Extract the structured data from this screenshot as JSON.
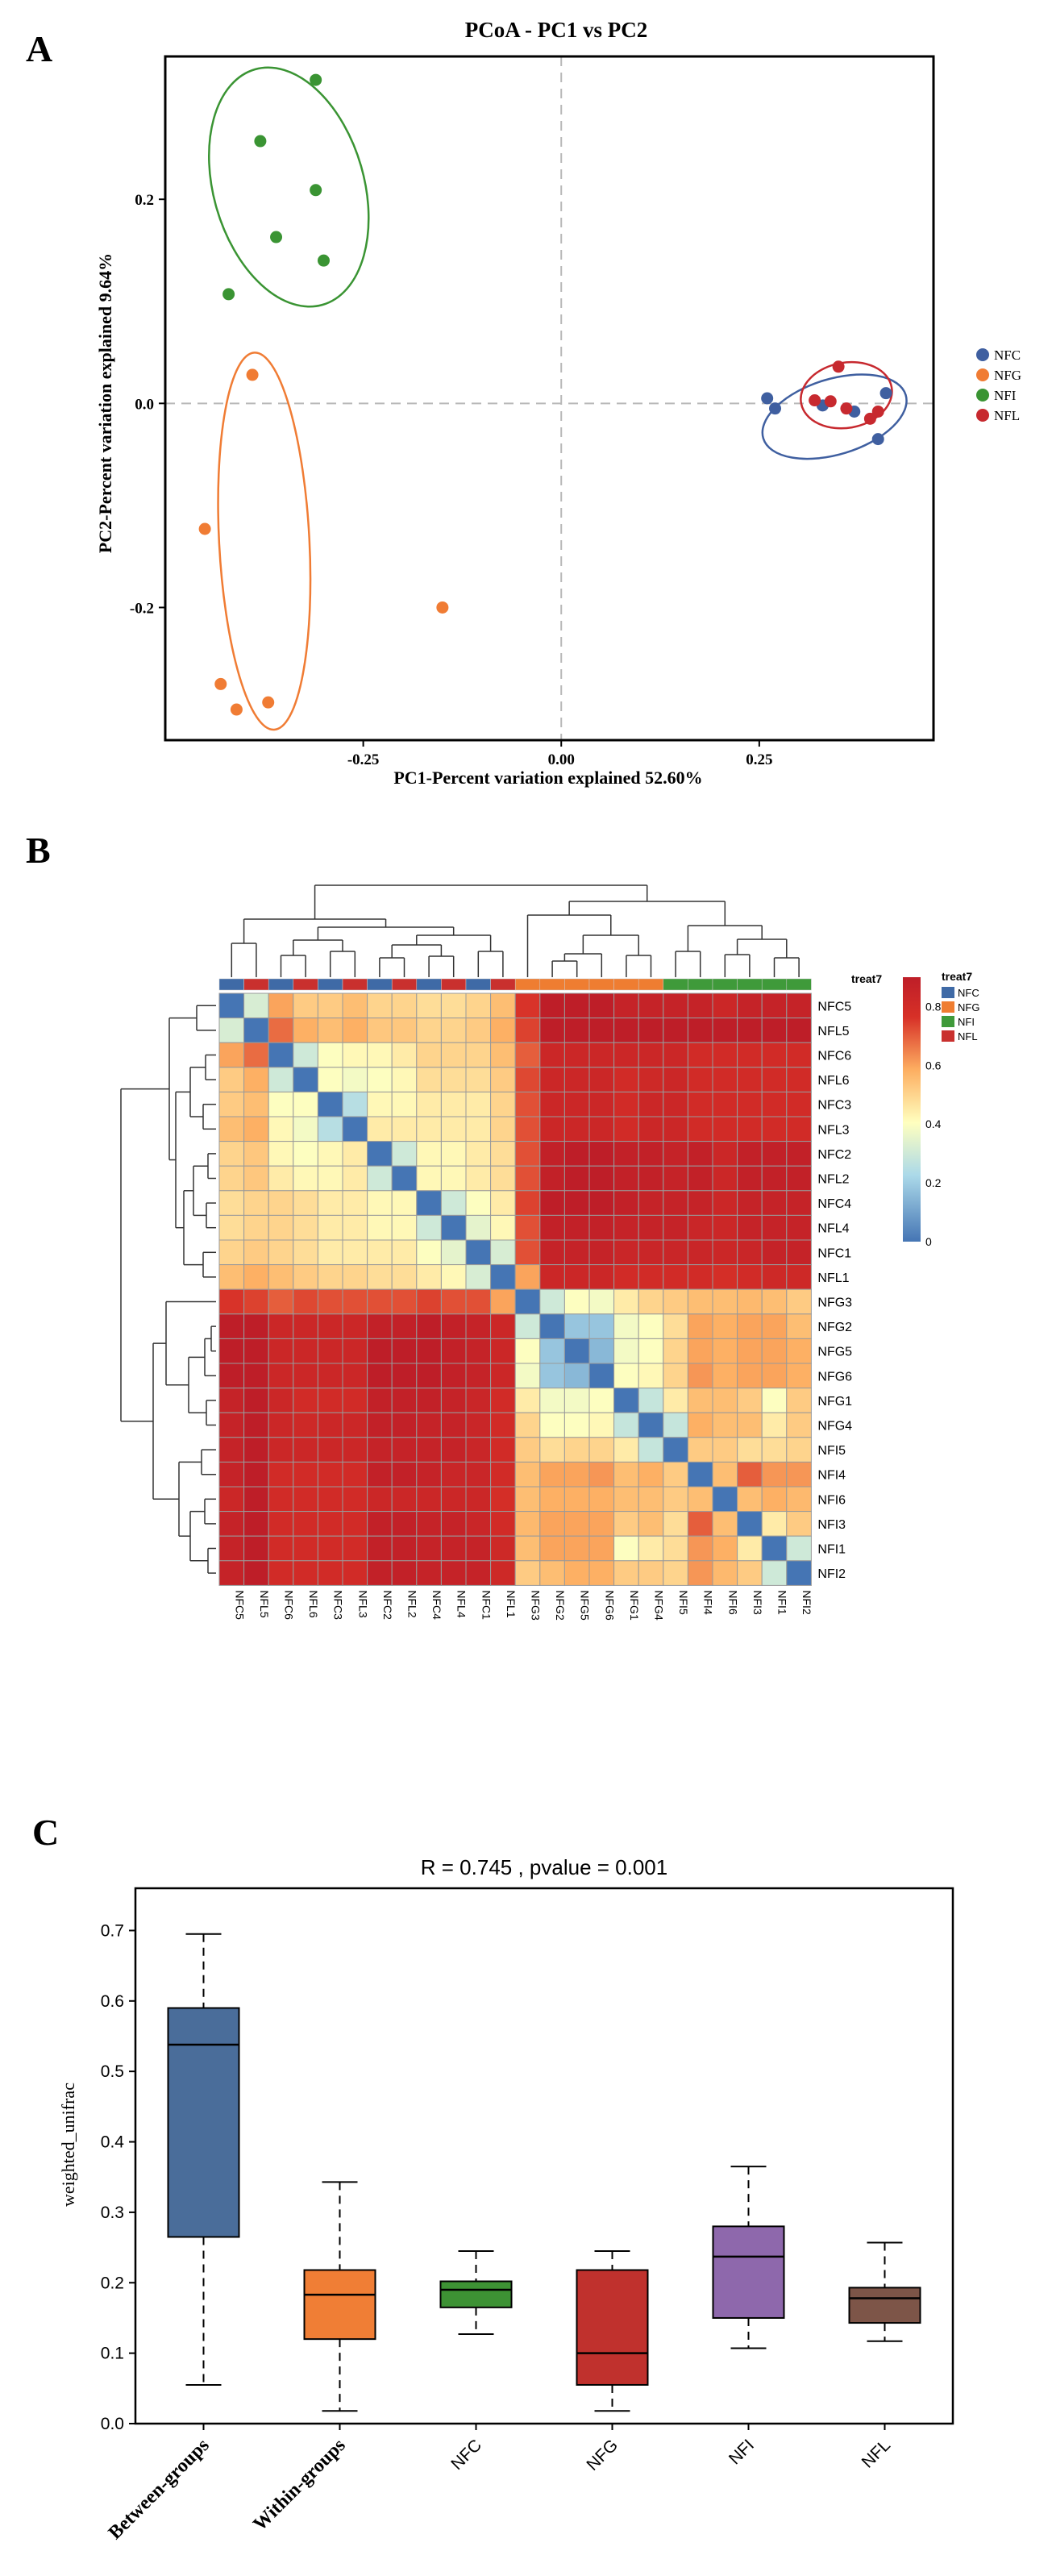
{
  "panels": {
    "a": {
      "label": "A",
      "chart_data": {
        "type": "scatter",
        "title": "PCoA - PC1 vs PC2",
        "xlabel": "PC1-Percent variation explained 52.60%",
        "ylabel": "PC2-Percent variation explained 9.64%",
        "xlim": [
          -0.5,
          0.47
        ],
        "ylim": [
          -0.33,
          0.34
        ],
        "xticks": [
          -0.25,
          0.0,
          0.25
        ],
        "xtick_labels": [
          "-0.25",
          "0.00",
          "0.25"
        ],
        "yticks": [
          -0.2,
          0.0,
          0.2
        ],
        "ytick_labels": [
          "-0.2",
          "0.0",
          "0.2"
        ],
        "legend_position": "right",
        "series": [
          {
            "name": "NFC",
            "color": "#3f5fa0",
            "points": [
              [
                0.26,
                0.005
              ],
              [
                0.27,
                -0.005
              ],
              [
                0.33,
                -0.002
              ],
              [
                0.41,
                0.01
              ],
              [
                0.4,
                -0.035
              ],
              [
                0.37,
                -0.008
              ]
            ],
            "ellipse": {
              "cx": 0.345,
              "cy": -0.013,
              "rx": 0.094,
              "ry": 0.037,
              "angle": -17
            }
          },
          {
            "name": "NFG",
            "color": "#f07c34",
            "points": [
              [
                -0.39,
                0.028
              ],
              [
                -0.45,
                -0.123
              ],
              [
                -0.15,
                -0.2
              ],
              [
                -0.43,
                -0.275
              ],
              [
                -0.37,
                -0.293
              ],
              [
                -0.41,
                -0.3
              ]
            ],
            "ellipse": {
              "cx": -0.375,
              "cy": -0.135,
              "rx": 0.057,
              "ry": 0.185,
              "angle": -3
            }
          },
          {
            "name": "NFI",
            "color": "#3a9433",
            "points": [
              [
                -0.31,
                0.317
              ],
              [
                -0.38,
                0.257
              ],
              [
                -0.31,
                0.209
              ],
              [
                -0.36,
                0.163
              ],
              [
                -0.3,
                0.14
              ],
              [
                -0.42,
                0.107
              ]
            ],
            "ellipse": {
              "cx": -0.344,
              "cy": 0.212,
              "rx": 0.095,
              "ry": 0.12,
              "angle": -16
            }
          },
          {
            "name": "NFL",
            "color": "#c7292f",
            "points": [
              [
                0.35,
                0.036
              ],
              [
                0.34,
                0.002
              ],
              [
                0.32,
                0.003
              ],
              [
                0.36,
                -0.005
              ],
              [
                0.4,
                -0.008
              ],
              [
                0.39,
                -0.015
              ]
            ],
            "ellipse": {
              "cx": 0.36,
              "cy": 0.008,
              "rx": 0.058,
              "ry": 0.032,
              "angle": -10
            }
          }
        ]
      }
    },
    "b": {
      "label": "B",
      "chart_data": {
        "type": "heatmap",
        "rows": [
          "NFC5",
          "NFL5",
          "NFC6",
          "NFL6",
          "NFC3",
          "NFL3",
          "NFC2",
          "NFL2",
          "NFC4",
          "NFL4",
          "NFC1",
          "NFL1",
          "NFG3",
          "NFG2",
          "NFG5",
          "NFG6",
          "NFG1",
          "NFG4",
          "NFI5",
          "NFI4",
          "NFI6",
          "NFI3",
          "NFI1",
          "NFI2"
        ],
        "columns": [
          "NFC5",
          "NFL5",
          "NFC6",
          "NFL6",
          "NFC3",
          "NFL3",
          "NFC2",
          "NFL2",
          "NFC4",
          "NFL4",
          "NFC1",
          "NFL1",
          "NFG3",
          "NFG2",
          "NFG5",
          "NFG6",
          "NFG1",
          "NFG4",
          "NFI5",
          "NFI4",
          "NFI6",
          "NFI3",
          "NFI1",
          "NFI2"
        ],
        "column_groups": [
          "NFC",
          "NFL",
          "NFC",
          "NFL",
          "NFC",
          "NFL",
          "NFC",
          "NFL",
          "NFC",
          "NFL",
          "NFC",
          "NFL",
          "NFG",
          "NFG",
          "NFG",
          "NFG",
          "NFG",
          "NFG",
          "NFI",
          "NFI",
          "NFI",
          "NFI",
          "NFI",
          "NFI"
        ],
        "annotation_title": "treat7",
        "legend_title": "treat7",
        "group_legend": [
          {
            "name": "NFC",
            "color": "#3f6aa6"
          },
          {
            "name": "NFG",
            "color": "#ef7d31"
          },
          {
            "name": "NFI",
            "color": "#3f9a3a"
          },
          {
            "name": "NFL",
            "color": "#c9302e"
          }
        ],
        "colorbar_ticks": [
          0,
          0.2,
          0.4,
          0.6,
          0.8
        ],
        "colorbar_labels": [
          "0",
          "0.2",
          "0.4",
          "0.6",
          "0.8"
        ],
        "value_range": [
          0,
          0.9
        ],
        "matrix": [
          [
            0.0,
            0.32,
            0.6,
            0.52,
            0.52,
            0.55,
            0.5,
            0.5,
            0.48,
            0.48,
            0.5,
            0.55,
            0.76,
            0.91,
            0.91,
            0.91,
            0.86,
            0.86,
            0.86,
            0.86,
            0.83,
            0.86,
            0.86,
            0.86
          ],
          [
            0.32,
            0.0,
            0.68,
            0.58,
            0.55,
            0.58,
            0.53,
            0.53,
            0.5,
            0.5,
            0.52,
            0.58,
            0.74,
            0.93,
            0.93,
            0.93,
            0.93,
            0.91,
            0.9,
            0.9,
            0.9,
            0.9,
            0.93,
            0.93
          ],
          [
            0.6,
            0.68,
            0.0,
            0.3,
            0.4,
            0.42,
            0.42,
            0.45,
            0.5,
            0.5,
            0.5,
            0.55,
            0.7,
            0.83,
            0.83,
            0.83,
            0.83,
            0.83,
            0.83,
            0.8,
            0.8,
            0.8,
            0.8,
            0.8
          ],
          [
            0.52,
            0.58,
            0.3,
            0.0,
            0.4,
            0.38,
            0.4,
            0.42,
            0.48,
            0.48,
            0.48,
            0.52,
            0.73,
            0.83,
            0.83,
            0.83,
            0.8,
            0.82,
            0.83,
            0.8,
            0.8,
            0.8,
            0.8,
            0.8
          ],
          [
            0.52,
            0.55,
            0.4,
            0.4,
            0.0,
            0.25,
            0.42,
            0.42,
            0.45,
            0.45,
            0.45,
            0.5,
            0.72,
            0.83,
            0.83,
            0.83,
            0.8,
            0.83,
            0.83,
            0.8,
            0.8,
            0.8,
            0.8,
            0.8
          ],
          [
            0.55,
            0.58,
            0.42,
            0.38,
            0.25,
            0.0,
            0.45,
            0.45,
            0.45,
            0.45,
            0.45,
            0.5,
            0.72,
            0.83,
            0.83,
            0.83,
            0.8,
            0.83,
            0.83,
            0.8,
            0.8,
            0.8,
            0.8,
            0.8
          ],
          [
            0.5,
            0.53,
            0.42,
            0.4,
            0.42,
            0.45,
            0.0,
            0.3,
            0.42,
            0.42,
            0.45,
            0.48,
            0.72,
            0.88,
            0.9,
            0.9,
            0.88,
            0.88,
            0.86,
            0.88,
            0.83,
            0.88,
            0.88,
            0.88
          ],
          [
            0.5,
            0.53,
            0.45,
            0.42,
            0.42,
            0.45,
            0.3,
            0.0,
            0.42,
            0.42,
            0.45,
            0.48,
            0.72,
            0.88,
            0.9,
            0.9,
            0.88,
            0.88,
            0.86,
            0.88,
            0.83,
            0.88,
            0.88,
            0.88
          ],
          [
            0.48,
            0.5,
            0.5,
            0.48,
            0.45,
            0.45,
            0.42,
            0.42,
            0.0,
            0.3,
            0.4,
            0.45,
            0.74,
            0.9,
            0.9,
            0.9,
            0.88,
            0.86,
            0.86,
            0.86,
            0.83,
            0.86,
            0.86,
            0.86
          ],
          [
            0.48,
            0.5,
            0.5,
            0.48,
            0.45,
            0.45,
            0.42,
            0.42,
            0.3,
            0.0,
            0.35,
            0.42,
            0.72,
            0.88,
            0.88,
            0.88,
            0.86,
            0.86,
            0.86,
            0.84,
            0.83,
            0.86,
            0.86,
            0.86
          ],
          [
            0.5,
            0.52,
            0.5,
            0.48,
            0.45,
            0.45,
            0.45,
            0.45,
            0.4,
            0.35,
            0.0,
            0.32,
            0.72,
            0.86,
            0.86,
            0.86,
            0.84,
            0.84,
            0.84,
            0.84,
            0.83,
            0.84,
            0.86,
            0.86
          ],
          [
            0.55,
            0.58,
            0.55,
            0.52,
            0.5,
            0.5,
            0.48,
            0.48,
            0.45,
            0.42,
            0.32,
            0.0,
            0.6,
            0.83,
            0.83,
            0.83,
            0.8,
            0.8,
            0.8,
            0.8,
            0.78,
            0.8,
            0.82,
            0.82
          ],
          [
            0.76,
            0.74,
            0.7,
            0.73,
            0.72,
            0.72,
            0.72,
            0.72,
            0.74,
            0.72,
            0.72,
            0.6,
            0.0,
            0.3,
            0.4,
            0.38,
            0.45,
            0.5,
            0.52,
            0.55,
            0.55,
            0.56,
            0.55,
            0.52
          ],
          [
            0.91,
            0.93,
            0.83,
            0.83,
            0.83,
            0.83,
            0.88,
            0.88,
            0.9,
            0.88,
            0.86,
            0.83,
            0.3,
            0.0,
            0.18,
            0.18,
            0.38,
            0.4,
            0.48,
            0.6,
            0.58,
            0.6,
            0.6,
            0.55
          ],
          [
            0.91,
            0.93,
            0.83,
            0.83,
            0.83,
            0.83,
            0.9,
            0.9,
            0.9,
            0.88,
            0.86,
            0.83,
            0.4,
            0.18,
            0.0,
            0.15,
            0.38,
            0.4,
            0.5,
            0.6,
            0.58,
            0.6,
            0.6,
            0.58
          ],
          [
            0.91,
            0.93,
            0.83,
            0.83,
            0.83,
            0.83,
            0.9,
            0.9,
            0.9,
            0.88,
            0.86,
            0.83,
            0.38,
            0.18,
            0.15,
            0.0,
            0.4,
            0.42,
            0.5,
            0.62,
            0.58,
            0.6,
            0.6,
            0.58
          ],
          [
            0.86,
            0.93,
            0.83,
            0.8,
            0.8,
            0.8,
            0.88,
            0.88,
            0.88,
            0.86,
            0.84,
            0.8,
            0.45,
            0.38,
            0.38,
            0.4,
            0.0,
            0.28,
            0.45,
            0.55,
            0.55,
            0.52,
            0.4,
            0.52
          ],
          [
            0.86,
            0.91,
            0.83,
            0.82,
            0.83,
            0.83,
            0.88,
            0.88,
            0.86,
            0.86,
            0.84,
            0.8,
            0.5,
            0.4,
            0.4,
            0.42,
            0.28,
            0.0,
            0.28,
            0.58,
            0.55,
            0.55,
            0.45,
            0.52
          ],
          [
            0.86,
            0.9,
            0.83,
            0.83,
            0.83,
            0.83,
            0.86,
            0.86,
            0.86,
            0.86,
            0.84,
            0.8,
            0.52,
            0.48,
            0.5,
            0.5,
            0.45,
            0.28,
            0.0,
            0.52,
            0.52,
            0.48,
            0.48,
            0.5
          ],
          [
            0.86,
            0.9,
            0.8,
            0.8,
            0.8,
            0.8,
            0.88,
            0.88,
            0.86,
            0.84,
            0.84,
            0.8,
            0.55,
            0.6,
            0.6,
            0.62,
            0.55,
            0.58,
            0.52,
            0.0,
            0.55,
            0.7,
            0.62,
            0.62
          ],
          [
            0.83,
            0.9,
            0.8,
            0.8,
            0.8,
            0.8,
            0.83,
            0.83,
            0.83,
            0.83,
            0.83,
            0.78,
            0.55,
            0.58,
            0.58,
            0.58,
            0.55,
            0.55,
            0.52,
            0.55,
            0.0,
            0.55,
            0.58,
            0.56
          ],
          [
            0.86,
            0.9,
            0.8,
            0.8,
            0.8,
            0.8,
            0.88,
            0.88,
            0.86,
            0.86,
            0.84,
            0.8,
            0.56,
            0.6,
            0.6,
            0.6,
            0.52,
            0.55,
            0.48,
            0.7,
            0.55,
            0.0,
            0.45,
            0.52
          ],
          [
            0.86,
            0.93,
            0.8,
            0.8,
            0.8,
            0.8,
            0.88,
            0.88,
            0.86,
            0.86,
            0.86,
            0.82,
            0.55,
            0.6,
            0.6,
            0.6,
            0.4,
            0.45,
            0.48,
            0.62,
            0.58,
            0.45,
            0.0,
            0.3
          ],
          [
            0.86,
            0.93,
            0.8,
            0.8,
            0.8,
            0.8,
            0.88,
            0.88,
            0.86,
            0.86,
            0.86,
            0.82,
            0.52,
            0.55,
            0.58,
            0.58,
            0.52,
            0.52,
            0.5,
            0.62,
            0.56,
            0.52,
            0.3,
            0.0
          ]
        ]
      }
    },
    "c": {
      "label": "C",
      "chart_data": {
        "type": "box",
        "title": "R = 0.745 , pvalue = 0.001",
        "ylabel": "weighted_unifrac",
        "ylim": [
          0,
          0.76
        ],
        "yticks": [
          0.0,
          0.1,
          0.2,
          0.3,
          0.4,
          0.5,
          0.6,
          0.7
        ],
        "ytick_labels": [
          "0.0",
          "0.1",
          "0.2",
          "0.3",
          "0.4",
          "0.5",
          "0.6",
          "0.7"
        ],
        "boxes": [
          {
            "name": "Between-groups",
            "bold": true,
            "color": "#4a6d9a",
            "min": 0.055,
            "q1": 0.265,
            "median": 0.538,
            "q3": 0.59,
            "max": 0.695
          },
          {
            "name": "Within-groups",
            "bold": true,
            "color": "#f07e35",
            "min": 0.018,
            "q1": 0.12,
            "median": 0.183,
            "q3": 0.218,
            "max": 0.343
          },
          {
            "name": "NFC",
            "bold": false,
            "color": "#3d9234",
            "min": 0.127,
            "q1": 0.165,
            "median": 0.19,
            "q3": 0.202,
            "max": 0.245
          },
          {
            "name": "NFG",
            "bold": false,
            "color": "#c0312d",
            "min": 0.018,
            "q1": 0.055,
            "median": 0.1,
            "q3": 0.218,
            "max": 0.245
          },
          {
            "name": "NFI",
            "bold": false,
            "color": "#8e68ac",
            "min": 0.107,
            "q1": 0.15,
            "median": 0.237,
            "q3": 0.28,
            "max": 0.365
          },
          {
            "name": "NFL",
            "bold": false,
            "color": "#7d5548",
            "min": 0.117,
            "q1": 0.143,
            "median": 0.178,
            "q3": 0.193,
            "max": 0.257
          }
        ]
      }
    }
  }
}
